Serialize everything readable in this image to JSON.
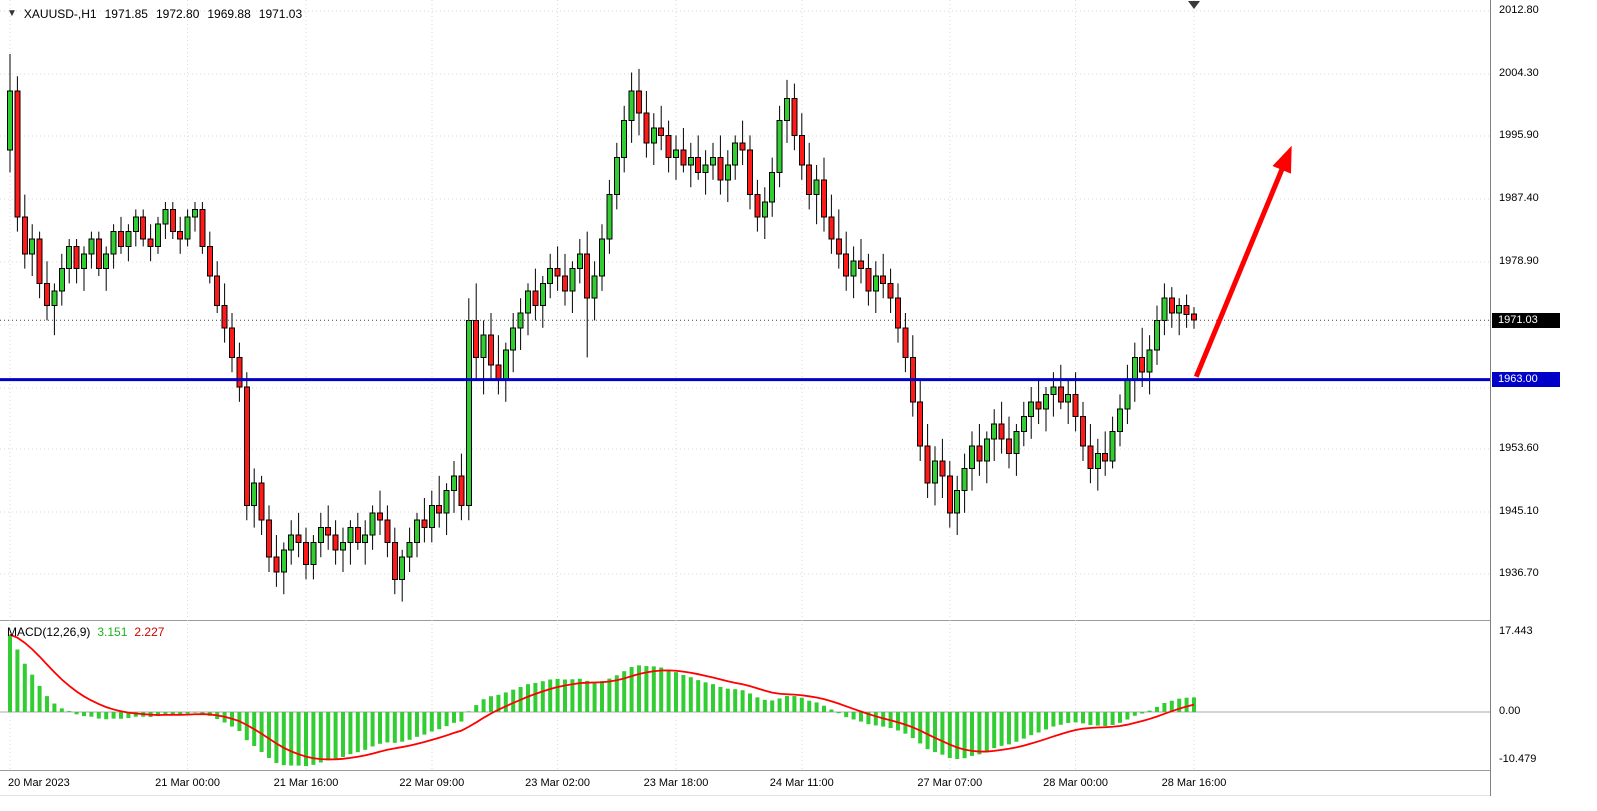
{
  "header": {
    "symbol_timeframe": "XAUUSD-,H1",
    "open": "1971.85",
    "high": "1972.80",
    "low": "1969.88",
    "close": "1971.03"
  },
  "chart_data": [
    {
      "type": "candlestick",
      "title": "XAUUSD-,H1",
      "symbol": "XAUUSD-",
      "timeframe": "H1",
      "grid": true,
      "ylim": [
        1931.5,
        2014.3
      ],
      "y_ticks": [
        2012.8,
        2004.3,
        1995.9,
        1987.4,
        1978.9,
        1970.4,
        1961.9,
        1953.6,
        1945.1,
        1936.7
      ],
      "y_tick_labels_visible": [
        "2012.80",
        "2004.30",
        "1995.90",
        "1987.40",
        "1978.90",
        "1953.60",
        "1945.10",
        "1936.70"
      ],
      "y_tick_prices_visible": [
        2012.8,
        2004.3,
        1995.9,
        1987.4,
        1978.9,
        1953.6,
        1945.1,
        1936.7
      ],
      "x_tick_labels": [
        "20 Mar 2023",
        "21 Mar 00:00",
        "21 Mar 16:00",
        "22 Mar 09:00",
        "23 Mar 02:00",
        "23 Mar 18:00",
        "24 Mar 11:00",
        "27 Mar 07:00",
        "28 Mar 00:00",
        "28 Mar 16:00"
      ],
      "x_tick_bars": [
        0,
        24,
        40,
        57,
        74,
        90,
        107,
        127,
        144,
        160
      ],
      "current_price": 1971.03,
      "current_badge": {
        "text": "1971.03",
        "price": 1971.03,
        "bg": "#000000",
        "fg": "#FFFFFF"
      },
      "bull_color": "#32CD32",
      "bear_color": "#FF1A1A",
      "wick_color": "#000000",
      "annotations": {
        "support_line": {
          "type": "horizontal-line",
          "price": 1963.0,
          "color": "#0000C8",
          "width": 3,
          "label": "1963.00"
        },
        "arrow": {
          "type": "trend-arrow",
          "color": "#FF0000",
          "from": {
            "bar": 160.3,
            "price": 1963.4
          },
          "to": {
            "bar": 173.2,
            "price": 1994.6
          }
        }
      },
      "candles": [
        [
          1994,
          2007,
          1991,
          2002
        ],
        [
          2002,
          2004,
          1983,
          1985
        ],
        [
          1985,
          1988,
          1978,
          1980
        ],
        [
          1980,
          1984,
          1977,
          1982
        ],
        [
          1982,
          1983,
          1974,
          1976
        ],
        [
          1976,
          1979,
          1971,
          1973
        ],
        [
          1973,
          1976,
          1969,
          1975
        ],
        [
          1975,
          1980,
          1973,
          1978
        ],
        [
          1978,
          1982,
          1976,
          1981
        ],
        [
          1981,
          1982,
          1976,
          1978
        ],
        [
          1978,
          1981,
          1975,
          1980
        ],
        [
          1980,
          1983,
          1978,
          1982
        ],
        [
          1982,
          1983,
          1977,
          1978
        ],
        [
          1978,
          1981,
          1975,
          1980
        ],
        [
          1980,
          1984,
          1978,
          1983
        ],
        [
          1983,
          1985,
          1980,
          1981
        ],
        [
          1981,
          1984,
          1979,
          1983
        ],
        [
          1983,
          1986,
          1981,
          1985
        ],
        [
          1985,
          1986,
          1981,
          1982
        ],
        [
          1982,
          1984,
          1979,
          1981
        ],
        [
          1981,
          1985,
          1980,
          1984
        ],
        [
          1984,
          1987,
          1982,
          1986
        ],
        [
          1986,
          1987,
          1982,
          1983
        ],
        [
          1983,
          1985,
          1980,
          1982
        ],
        [
          1982,
          1986,
          1981,
          1985
        ],
        [
          1985,
          1987,
          1983,
          1986
        ],
        [
          1986,
          1987,
          1980,
          1981
        ],
        [
          1981,
          1983,
          1976,
          1977
        ],
        [
          1977,
          1979,
          1972,
          1973
        ],
        [
          1973,
          1976,
          1968,
          1970
        ],
        [
          1970,
          1972,
          1964,
          1966
        ],
        [
          1966,
          1968,
          1960,
          1962
        ],
        [
          1962,
          1964,
          1944,
          1946
        ],
        [
          1946,
          1951,
          1943,
          1949
        ],
        [
          1949,
          1950,
          1942,
          1944
        ],
        [
          1944,
          1946,
          1937,
          1939
        ],
        [
          1939,
          1942,
          1935,
          1937
        ],
        [
          1937,
          1941,
          1934,
          1940
        ],
        [
          1940,
          1944,
          1938,
          1942
        ],
        [
          1942,
          1945,
          1939,
          1941
        ],
        [
          1941,
          1943,
          1936,
          1938
        ],
        [
          1938,
          1942,
          1936,
          1941
        ],
        [
          1941,
          1945,
          1939,
          1943
        ],
        [
          1943,
          1946,
          1940,
          1942
        ],
        [
          1942,
          1944,
          1938,
          1940
        ],
        [
          1940,
          1943,
          1937,
          1941
        ],
        [
          1941,
          1944,
          1938,
          1943
        ],
        [
          1943,
          1945,
          1940,
          1941
        ],
        [
          1941,
          1944,
          1938,
          1942
        ],
        [
          1942,
          1946,
          1940,
          1945
        ],
        [
          1945,
          1948,
          1942,
          1944
        ],
        [
          1944,
          1946,
          1939,
          1941
        ],
        [
          1941,
          1943,
          1934,
          1936
        ],
        [
          1936,
          1940,
          1933,
          1939
        ],
        [
          1939,
          1943,
          1937,
          1941
        ],
        [
          1941,
          1945,
          1939,
          1944
        ],
        [
          1944,
          1947,
          1941,
          1943
        ],
        [
          1943,
          1948,
          1941,
          1946
        ],
        [
          1946,
          1950,
          1943,
          1945
        ],
        [
          1945,
          1949,
          1942,
          1948
        ],
        [
          1948,
          1952,
          1945,
          1950
        ],
        [
          1950,
          1953,
          1944,
          1946
        ],
        [
          1946,
          1974,
          1944,
          1971
        ],
        [
          1971,
          1976,
          1963,
          1966
        ],
        [
          1966,
          1971,
          1961,
          1969
        ],
        [
          1969,
          1972,
          1963,
          1965
        ],
        [
          1965,
          1969,
          1961,
          1963
        ],
        [
          1963,
          1968,
          1960,
          1967
        ],
        [
          1967,
          1972,
          1964,
          1970
        ],
        [
          1970,
          1974,
          1967,
          1972
        ],
        [
          1972,
          1976,
          1969,
          1975
        ],
        [
          1975,
          1978,
          1971,
          1973
        ],
        [
          1973,
          1977,
          1970,
          1976
        ],
        [
          1976,
          1980,
          1974,
          1978
        ],
        [
          1978,
          1981,
          1975,
          1977
        ],
        [
          1977,
          1980,
          1973,
          1975
        ],
        [
          1975,
          1979,
          1972,
          1978
        ],
        [
          1978,
          1982,
          1976,
          1980
        ],
        [
          1980,
          1983,
          1966,
          1974
        ],
        [
          1974,
          1979,
          1971,
          1977
        ],
        [
          1977,
          1984,
          1975,
          1982
        ],
        [
          1982,
          1990,
          1980,
          1988
        ],
        [
          1988,
          1995,
          1986,
          1993
        ],
        [
          1993,
          2000,
          1991,
          1998
        ],
        [
          1998,
          2004.5,
          1995,
          2002
        ],
        [
          2002,
          2005,
          1996,
          1999
        ],
        [
          1999,
          2002,
          1993,
          1995
        ],
        [
          1995,
          1999,
          1992,
          1997
        ],
        [
          1997,
          2000,
          1994,
          1996
        ],
        [
          1996,
          1998,
          1991,
          1993
        ],
        [
          1993,
          1996,
          1990,
          1994
        ],
        [
          1994,
          1997,
          1991,
          1992
        ],
        [
          1992,
          1995,
          1989,
          1993
        ],
        [
          1993,
          1996,
          1990,
          1991
        ],
        [
          1991,
          1994,
          1988,
          1992
        ],
        [
          1992,
          1995,
          1990,
          1993
        ],
        [
          1993,
          1996,
          1988,
          1990
        ],
        [
          1990,
          1994,
          1987,
          1992
        ],
        [
          1992,
          1996,
          1990,
          1995
        ],
        [
          1995,
          1998,
          1992,
          1994
        ],
        [
          1994,
          1996,
          1986,
          1988
        ],
        [
          1988,
          1990,
          1983,
          1985
        ],
        [
          1985,
          1989,
          1982,
          1987
        ],
        [
          1987,
          1993,
          1985,
          1991
        ],
        [
          1991,
          2000,
          1989,
          1998
        ],
        [
          1998,
          2003.5,
          1995,
          2001
        ],
        [
          2001,
          2003,
          1994,
          1996
        ],
        [
          1996,
          1999,
          1990,
          1992
        ],
        [
          1992,
          1995,
          1986,
          1988
        ],
        [
          1988,
          1992,
          1984,
          1990
        ],
        [
          1990,
          1993,
          1983,
          1985
        ],
        [
          1985,
          1988,
          1980,
          1982
        ],
        [
          1982,
          1986,
          1978,
          1980
        ],
        [
          1980,
          1983,
          1975,
          1977
        ],
        [
          1977,
          1981,
          1974,
          1979
        ],
        [
          1979,
          1982,
          1976,
          1978
        ],
        [
          1978,
          1980,
          1973,
          1975
        ],
        [
          1975,
          1979,
          1972,
          1977
        ],
        [
          1977,
          1980,
          1974,
          1976
        ],
        [
          1976,
          1978,
          1972,
          1974
        ],
        [
          1974,
          1976,
          1968,
          1970
        ],
        [
          1970,
          1972,
          1964,
          1966
        ],
        [
          1966,
          1969,
          1958,
          1960
        ],
        [
          1960,
          1963,
          1952,
          1954
        ],
        [
          1954,
          1957,
          1947,
          1949
        ],
        [
          1949,
          1954,
          1946,
          1952
        ],
        [
          1952,
          1955,
          1947,
          1950
        ],
        [
          1950,
          1952,
          1943,
          1945
        ],
        [
          1945,
          1950,
          1942,
          1948
        ],
        [
          1948,
          1953,
          1945,
          1951
        ],
        [
          1951,
          1956,
          1948,
          1954
        ],
        [
          1954,
          1957,
          1950,
          1952
        ],
        [
          1952,
          1956,
          1949,
          1955
        ],
        [
          1955,
          1959,
          1952,
          1957
        ],
        [
          1957,
          1960,
          1953,
          1955
        ],
        [
          1955,
          1958,
          1951,
          1953
        ],
        [
          1953,
          1957,
          1950,
          1956
        ],
        [
          1956,
          1960,
          1954,
          1958
        ],
        [
          1958,
          1962,
          1955,
          1960
        ],
        [
          1960,
          1963,
          1957,
          1959
        ],
        [
          1959,
          1962,
          1956,
          1961
        ],
        [
          1961,
          1964,
          1958,
          1962
        ],
        [
          1962,
          1965,
          1959,
          1960
        ],
        [
          1960,
          1963,
          1957,
          1961
        ],
        [
          1961,
          1964,
          1956,
          1958
        ],
        [
          1958,
          1960,
          1952,
          1954
        ],
        [
          1954,
          1957,
          1949,
          1951
        ],
        [
          1951,
          1955,
          1948,
          1953
        ],
        [
          1953,
          1956,
          1950,
          1952
        ],
        [
          1952,
          1958,
          1951,
          1956
        ],
        [
          1956,
          1961,
          1954,
          1959
        ],
        [
          1959,
          1965,
          1957,
          1963
        ],
        [
          1963,
          1968,
          1960,
          1966
        ],
        [
          1966,
          1970,
          1962,
          1964
        ],
        [
          1964,
          1969,
          1961,
          1967
        ],
        [
          1967,
          1973,
          1965,
          1971
        ],
        [
          1971,
          1976,
          1969,
          1974
        ],
        [
          1974,
          1975.5,
          1970,
          1972
        ],
        [
          1972,
          1974,
          1969,
          1973
        ],
        [
          1973,
          1974.5,
          1970,
          1971.8
        ],
        [
          1971.85,
          1972.8,
          1969.88,
          1971.03
        ]
      ]
    },
    {
      "type": "macd-histogram",
      "label": "MACD(12,26,9)",
      "macd_value": "3.151",
      "signal_value": "2.227",
      "params": {
        "fast": 12,
        "slow": 26,
        "signal": 9
      },
      "y_ticks": [
        "17.443",
        "0.00",
        "-10.479"
      ],
      "y_tick_values": [
        17.443,
        0,
        -10.479
      ],
      "histogram_color": "#32CD32",
      "signal_color": "#FF0000"
    }
  ]
}
